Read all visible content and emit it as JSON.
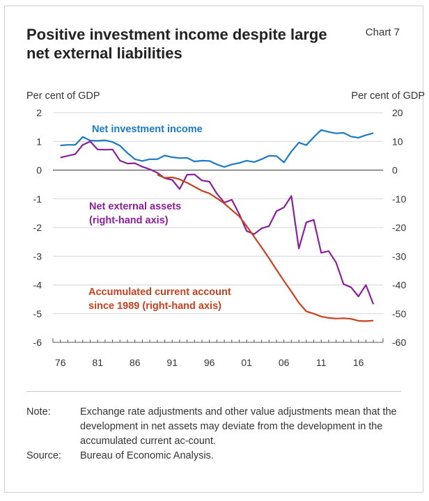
{
  "header": {
    "title": "Positive investment income despite large net external liabilities",
    "chart_number": "Chart 7"
  },
  "footer": {
    "note_label": "Note:",
    "note_text": "Exchange rate adjustments and other value adjustments mean that the development in net assets may deviate from the development in the accumulated current ac-count.",
    "source_label": "Source:",
    "source_text": "Bureau of Economic Analysis."
  },
  "chart_data": {
    "type": "line",
    "left_axis": {
      "label": "Per cent of GDP",
      "range": [
        -6,
        2
      ],
      "ticks": [
        "2",
        "1",
        "0",
        "-1",
        "-2",
        "-3",
        "-4",
        "-5",
        "-6"
      ]
    },
    "right_axis": {
      "label": "Per cent of GDP",
      "range": [
        -60,
        20
      ],
      "ticks": [
        "20",
        "10",
        "0",
        "-10",
        "-20",
        "-30",
        "-40",
        "-50",
        "-60"
      ]
    },
    "x_axis": {
      "range": [
        1976,
        2019
      ],
      "ticks": [
        "76",
        "81",
        "86",
        "91",
        "96",
        "01",
        "06",
        "11",
        "16"
      ]
    },
    "grid": "horizontal",
    "colors": {
      "income": "#1a7ac8",
      "assets": "#8b1f9b",
      "current_account": "#c8401e",
      "grid": "#d5d5d5",
      "axis": "#555555"
    },
    "series": [
      {
        "name": "Net investment income",
        "axis": "left",
        "key": "income",
        "x": [
          1976,
          1977,
          1978,
          1979,
          1980,
          1981,
          1982,
          1983,
          1984,
          1985,
          1986,
          1987,
          1988,
          1989,
          1990,
          1991,
          1992,
          1993,
          1994,
          1995,
          1996,
          1997,
          1998,
          1999,
          2000,
          2001,
          2002,
          2003,
          2004,
          2005,
          2006,
          2007,
          2008,
          2009,
          2010,
          2011,
          2012,
          2013,
          2014,
          2015,
          2016,
          2017,
          2018
        ],
        "values": [
          0.86,
          0.88,
          0.88,
          1.16,
          1.03,
          1.02,
          1.04,
          0.98,
          0.85,
          0.6,
          0.38,
          0.32,
          0.38,
          0.38,
          0.51,
          0.45,
          0.42,
          0.43,
          0.3,
          0.33,
          0.32,
          0.2,
          0.11,
          0.2,
          0.25,
          0.33,
          0.28,
          0.38,
          0.5,
          0.49,
          0.27,
          0.65,
          0.96,
          0.87,
          1.15,
          1.4,
          1.33,
          1.28,
          1.3,
          1.17,
          1.13,
          1.22,
          1.29
        ]
      },
      {
        "name": "Net external assets (right-hand axis)",
        "axis": "right",
        "key": "assets",
        "x": [
          1976,
          1977,
          1978,
          1979,
          1980,
          1981,
          1982,
          1983,
          1984,
          1985,
          1986,
          1987,
          1988,
          1989,
          1990,
          1991,
          1992,
          1993,
          1994,
          1995,
          1996,
          1997,
          1998,
          1999,
          2000,
          2001,
          2002,
          2003,
          2004,
          2005,
          2006,
          2007,
          2008,
          2009,
          2010,
          2011,
          2012,
          2013,
          2014,
          2015,
          2016,
          2017,
          2018
        ],
        "values": [
          4.4,
          5,
          5.6,
          8.8,
          10,
          7.2,
          7.1,
          7.2,
          3.3,
          2.3,
          2.4,
          1.2,
          0.3,
          -0.9,
          -2.8,
          -3.4,
          -6.6,
          -1.6,
          -1.5,
          -3.6,
          -4,
          -8.2,
          -11.3,
          -10.3,
          -15.3,
          -21.2,
          -22.3,
          -20.3,
          -19.5,
          -14.3,
          -13,
          -9,
          -27.3,
          -18.2,
          -17.3,
          -28.8,
          -28.2,
          -32.2,
          -39.7,
          -40.8,
          -44,
          -40,
          -46.7
        ]
      },
      {
        "name": "Accumulated current account since 1989 (right-hand axis)",
        "axis": "right",
        "key": "current_account",
        "x": [
          1989,
          1990,
          1991,
          1992,
          1993,
          1994,
          1995,
          1996,
          1997,
          1998,
          1999,
          2000,
          2001,
          2002,
          2003,
          2004,
          2005,
          2006,
          2007,
          2008,
          2009,
          2010,
          2011,
          2012,
          2013,
          2014,
          2015,
          2016,
          2017,
          2018
        ],
        "values": [
          -1.6,
          -2.7,
          -2.5,
          -3.2,
          -4.4,
          -5.8,
          -7.2,
          -8.1,
          -9.8,
          -11.6,
          -13.9,
          -16.1,
          -19.5,
          -23.2,
          -26.9,
          -30.7,
          -34.7,
          -38.6,
          -42.3,
          -46.2,
          -49.2,
          -50,
          -51,
          -51.5,
          -51.7,
          -51.6,
          -51.8,
          -52.5,
          -52.6,
          -52.4
        ]
      }
    ],
    "annotations": [
      {
        "text": "Net investment income",
        "series": "income"
      },
      {
        "text": "Net external assets",
        "series": "assets"
      },
      {
        "text": "(right-hand axis)",
        "series": "assets"
      },
      {
        "text": "Accumulated current account",
        "series": "current_account"
      },
      {
        "text": "since 1989 (right-hand axis)",
        "series": "current_account"
      }
    ]
  }
}
